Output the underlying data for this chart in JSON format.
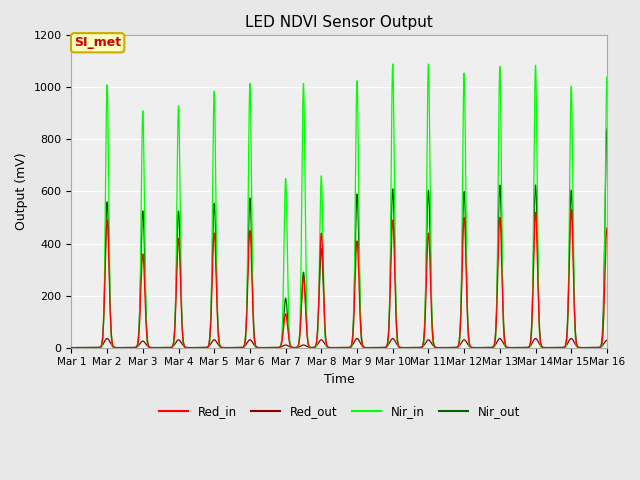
{
  "title": "LED NDVI Sensor Output",
  "xlabel": "Time",
  "ylabel": "Output (mV)",
  "ylim": [
    0,
    1200
  ],
  "fig_bg": "#e8e8e8",
  "plot_bg": "#e8e8e8",
  "legend_entries": [
    "Red_in",
    "Red_out",
    "Nir_in",
    "Nir_out"
  ],
  "legend_colors": [
    "#ff0000",
    "#8b0000",
    "#00ff00",
    "#006400"
  ],
  "annotation_text": "SI_met",
  "annotation_color": "#cc0000",
  "annotation_bg": "#ffffc0",
  "annotation_border": "#ccaa00",
  "tick_labels": [
    "Mar 1",
    "Mar 2",
    "Mar 3",
    "Mar 4",
    "Mar 5",
    "Mar 6",
    "Mar 7",
    "Mar 8",
    "Mar 9",
    "Mar 10",
    "Mar 11",
    "Mar 12",
    "Mar 13",
    "Mar 14",
    "Mar 15",
    "Mar 16"
  ],
  "peak_days": [
    1,
    2,
    3,
    4,
    5,
    6,
    6.5,
    7,
    8,
    9,
    10,
    11,
    12,
    13,
    14,
    15
  ],
  "amp_red_in": [
    490,
    360,
    420,
    440,
    450,
    130,
    270,
    440,
    410,
    490,
    440,
    500,
    500,
    520,
    530,
    460
  ],
  "amp_red_out": [
    35,
    25,
    30,
    30,
    30,
    10,
    10,
    30,
    35,
    35,
    30,
    30,
    35,
    35,
    35,
    28
  ],
  "amp_nir_in": [
    1010,
    910,
    930,
    985,
    1015,
    650,
    1015,
    660,
    1025,
    1090,
    1090,
    1055,
    1080,
    1085,
    1005,
    1040
  ],
  "amp_nir_out": [
    560,
    525,
    525,
    555,
    575,
    190,
    290,
    380,
    590,
    610,
    605,
    600,
    625,
    625,
    605,
    840
  ]
}
